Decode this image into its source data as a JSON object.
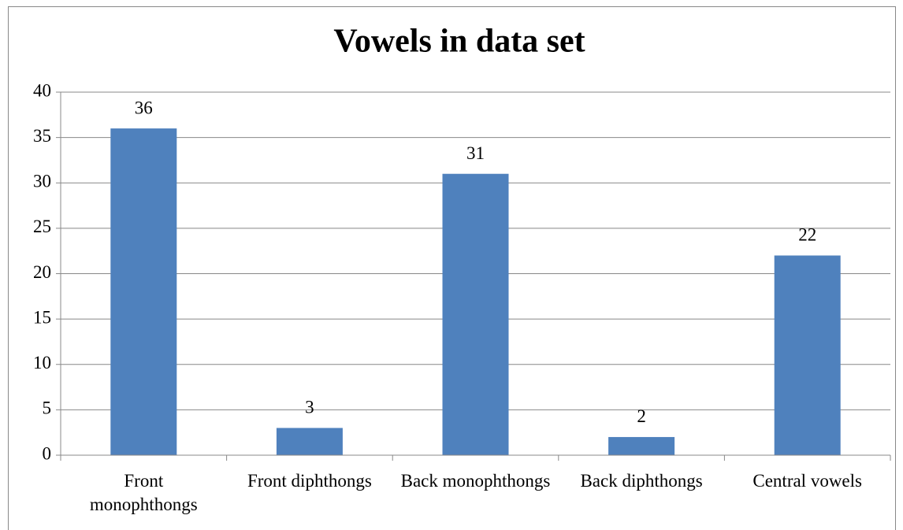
{
  "chart_data": {
    "type": "bar",
    "title": "Vowels in data set",
    "categories": [
      "Front monophthongs",
      "Front diphthongs",
      "Back monophthongs",
      "Back diphthongs",
      "Central vowels"
    ],
    "values": [
      36,
      3,
      31,
      2,
      22
    ],
    "color": "#4f81bd",
    "ylim": [
      0,
      40
    ],
    "yticks": [
      0,
      5,
      10,
      15,
      20,
      25,
      30,
      35,
      40
    ],
    "grid": true
  }
}
